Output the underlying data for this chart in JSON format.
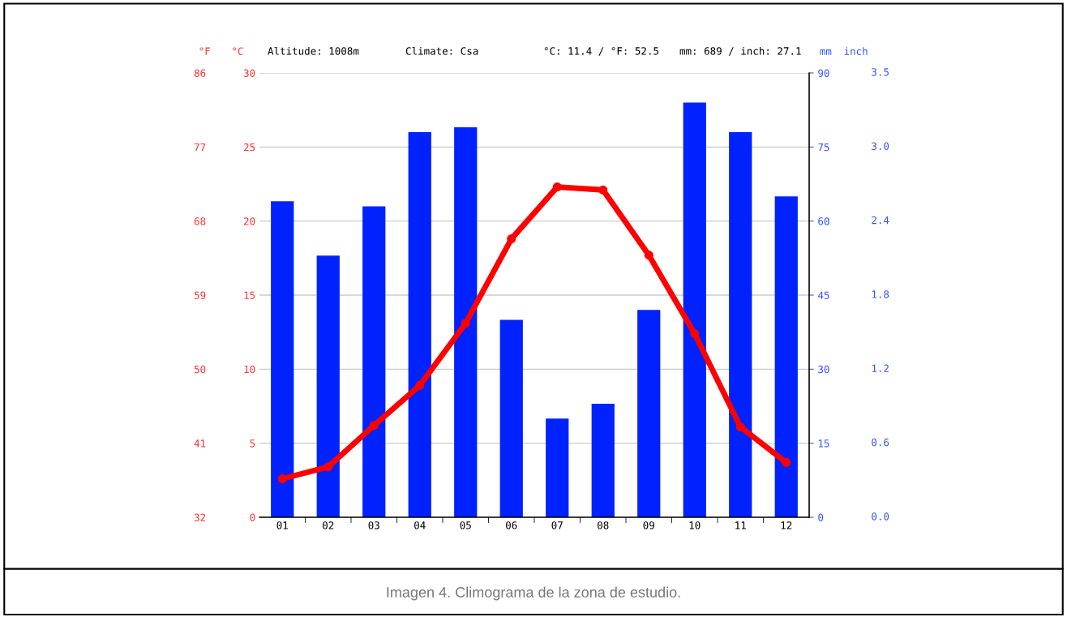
{
  "chart_data": {
    "type": "bar",
    "categories": [
      "01",
      "02",
      "03",
      "04",
      "05",
      "06",
      "07",
      "08",
      "09",
      "10",
      "11",
      "12"
    ],
    "series": [
      {
        "axis": "y2",
        "color": "#0022ff",
        "values": [
          64,
          53,
          63,
          78,
          79,
          40,
          20,
          23,
          42,
          84,
          78,
          65
        ]
      },
      {
        "type": "line",
        "axis": "y",
        "color": "#ff0000",
        "marker": "circle",
        "line_style": "solid",
        "values": [
          2.6,
          3.4,
          6.2,
          8.9,
          13.1,
          18.8,
          22.3,
          22.1,
          17.7,
          12.4,
          6.1,
          3.7
        ]
      }
    ],
    "ylabel": "°C",
    "ylim": [
      0,
      30
    ],
    "yticks": [
      0,
      5,
      10,
      15,
      20,
      25,
      30
    ],
    "y2label": "mm",
    "y2lim": [
      0,
      90
    ],
    "y2ticks": [
      0,
      15,
      30,
      45,
      60,
      75,
      90
    ],
    "y3label": "°F",
    "y3lim": [
      32,
      86
    ],
    "y3ticks": [
      32,
      41,
      50,
      59,
      68,
      77,
      86
    ],
    "grid": "y",
    "annotations": [
      "Altitude: 1008m",
      "Climate: Csa",
      "°C: 11.4 / °F: 52.5",
      "mm: 689 / inch: 27.1",
      "Imagen 4. Climograma de la zona de estudio.",
      "inch",
      "0.0",
      "0.6",
      "1.2",
      "1.8",
      "2.4",
      "3.0",
      "3.5"
    ]
  }
}
